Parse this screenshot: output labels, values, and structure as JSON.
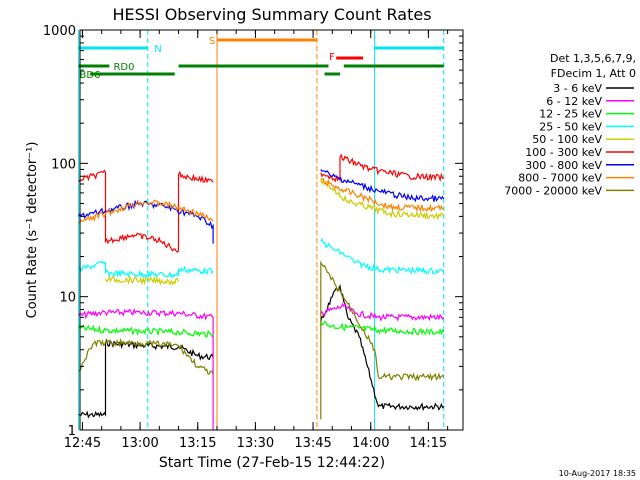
{
  "chart_data": {
    "type": "line",
    "title": "HESSI Observing Summary Count Rates",
    "xlabel": "Start Time (27-Feb-15 12:44:22)",
    "ylabel": "Count Rate (s⁻¹ detector⁻¹)",
    "yscale": "log",
    "ylim": [
      1,
      1000
    ],
    "xlim": [
      "12:44:22",
      "14:24:00"
    ],
    "x_ticks": [
      "12:45",
      "13:00",
      "13:15",
      "13:30",
      "13:45",
      "14:00",
      "14:15"
    ],
    "y_ticks": [
      "1",
      "10",
      "100",
      "1000"
    ],
    "footer_timestamp": "10-Aug-2017 18:35",
    "legend_header": [
      "Det 1,3,5,6,7,9,",
      "FDecim 1, Att 0"
    ],
    "status_flags": [
      {
        "label": "N",
        "color": "#00e5ee",
        "segments": [
          [
            "12:44",
            "13:02"
          ],
          [
            "14:01",
            "14:19"
          ]
        ]
      },
      {
        "label": "S",
        "color": "#ff8000",
        "segments": [
          [
            "13:20",
            "13:46"
          ]
        ]
      },
      {
        "label": "F",
        "color": "#ff0000",
        "segments": [
          [
            "13:51",
            "13:58"
          ]
        ]
      },
      {
        "label": "RD0",
        "color": "#008000",
        "segments": [
          [
            "12:44",
            "12:52"
          ],
          [
            "13:10",
            "13:49"
          ],
          [
            "13:53",
            "14:19"
          ]
        ]
      },
      {
        "label": "BD6",
        "color": "#008000",
        "segments": [
          [
            "12:47",
            "13:09"
          ],
          [
            "13:48",
            "13:52"
          ]
        ]
      }
    ],
    "series": [
      {
        "name": "3 - 6 keV",
        "color": "#000000",
        "segments": [
          [
            [
              "12:44",
              1.3
            ],
            [
              "12:51",
              1.3
            ],
            [
              "12:51",
              4.5
            ],
            [
              "13:00",
              4.3
            ],
            [
              "13:10",
              4.2
            ],
            [
              "13:15",
              3.6
            ],
            [
              "13:19",
              3.5
            ]
          ],
          [
            [
              "13:47",
              6.5
            ],
            [
              "13:50",
              10
            ],
            [
              "13:52",
              12
            ],
            [
              "13:54",
              7
            ],
            [
              "13:57",
              5
            ],
            [
              "14:02",
              1.5
            ],
            [
              "14:19",
              1.5
            ]
          ]
        ]
      },
      {
        "name": "6 - 12 keV",
        "color": "#ff00ff",
        "segments": [
          [
            [
              "12:44",
              7.2
            ],
            [
              "12:50",
              7.6
            ],
            [
              "13:00",
              7.6
            ],
            [
              "13:10",
              7.5
            ],
            [
              "13:19",
              7.0
            ],
            [
              "13:19",
              1.0
            ]
          ],
          [
            [
              "13:47",
              7.5
            ],
            [
              "13:53",
              8.5
            ],
            [
              "13:56",
              7.5
            ],
            [
              "14:02",
              7.0
            ],
            [
              "14:19",
              7.0
            ]
          ]
        ]
      },
      {
        "name": "12 - 25 keV",
        "color": "#00ff00",
        "segments": [
          [
            [
              "12:44",
              5.8
            ],
            [
              "12:51",
              5.6
            ],
            [
              "13:00",
              5.5
            ],
            [
              "13:10",
              5.4
            ],
            [
              "13:19",
              5.2
            ]
          ],
          [
            [
              "13:47",
              6.5
            ],
            [
              "13:50",
              6.0
            ],
            [
              "13:57",
              5.8
            ],
            [
              "14:02",
              5.6
            ],
            [
              "14:19",
              5.4
            ]
          ]
        ]
      },
      {
        "name": "25 - 50 keV",
        "color": "#00ffff",
        "segments": [
          [
            [
              "12:44",
              16
            ],
            [
              "12:51",
              18
            ],
            [
              "12:51",
              15
            ],
            [
              "13:10",
              14.5
            ],
            [
              "13:10",
              16
            ],
            [
              "13:19",
              15.5
            ]
          ],
          [
            [
              "13:47",
              26
            ],
            [
              "13:50",
              23
            ],
            [
              "13:54",
              20
            ],
            [
              "13:56",
              18
            ],
            [
              "14:02",
              16
            ],
            [
              "14:19",
              15.5
            ]
          ]
        ]
      },
      {
        "name": "50 - 100 keV",
        "color": "#cccc00",
        "segments": [
          [
            [
              "12:51",
              13.5
            ],
            [
              "13:10",
              13.0
            ]
          ],
          [
            [
              "13:47",
              75
            ],
            [
              "13:50",
              65
            ],
            [
              "13:54",
              52
            ],
            [
              "14:05",
              42
            ],
            [
              "14:19",
              40
            ]
          ]
        ]
      },
      {
        "name": "100 - 300 keV",
        "color": "#ff0000",
        "segments": [
          [
            [
              "12:44",
              75
            ],
            [
              "12:51",
              85
            ],
            [
              "12:51",
              26
            ],
            [
              "12:58",
              29
            ],
            [
              "13:04",
              27
            ],
            [
              "13:10",
              22
            ],
            [
              "13:10",
              82
            ],
            [
              "13:19",
              72
            ]
          ],
          [
            [
              "13:47",
              85
            ],
            [
              "13:52",
              75
            ],
            [
              "13:52",
              112
            ],
            [
              "14:00",
              90
            ],
            [
              "14:10",
              80
            ],
            [
              "14:19",
              78
            ]
          ]
        ]
      },
      {
        "name": "300 - 800 keV",
        "color": "#0000ff",
        "segments": [
          [
            [
              "12:44",
              40
            ],
            [
              "12:51",
              44
            ],
            [
              "13:00",
              50
            ],
            [
              "13:06",
              48
            ],
            [
              "13:15",
              40
            ],
            [
              "13:19",
              34
            ],
            [
              "13:19",
              25
            ]
          ],
          [
            [
              "13:47",
              90
            ],
            [
              "13:50",
              80
            ],
            [
              "13:55",
              72
            ],
            [
              "14:02",
              62
            ],
            [
              "14:10",
              55
            ],
            [
              "14:19",
              54
            ]
          ]
        ]
      },
      {
        "name": "800 - 7000 keV",
        "color": "#ff8000",
        "segments": [
          [
            [
              "12:44",
              36
            ],
            [
              "12:51",
              42
            ],
            [
              "13:00",
              51
            ],
            [
              "13:06",
              50
            ],
            [
              "13:15",
              42
            ],
            [
              "13:19",
              37
            ]
          ],
          [
            [
              "13:47",
              75
            ],
            [
              "13:50",
              68
            ],
            [
              "13:55",
              60
            ],
            [
              "14:05",
              47
            ],
            [
              "14:19",
              46
            ]
          ]
        ]
      },
      {
        "name": "7000 - 20000 keV",
        "color": "#808000",
        "segments": [
          [
            [
              "12:44",
              2.8
            ],
            [
              "12:48",
              4.5
            ],
            [
              "13:00",
              4.5
            ],
            [
              "13:10",
              4.3
            ],
            [
              "13:15",
              3.0
            ],
            [
              "13:19",
              2.6
            ]
          ],
          [
            [
              "13:47",
              1.2
            ],
            [
              "13:47",
              18
            ],
            [
              "13:51",
              12
            ],
            [
              "13:55",
              8
            ],
            [
              "14:01",
              4.0
            ],
            [
              "14:02",
              2.5
            ],
            [
              "14:19",
              2.5
            ]
          ]
        ]
      }
    ],
    "vertical_markers": [
      {
        "time": "12:44",
        "color": "#00e5ee",
        "style": "solid"
      },
      {
        "time": "13:02",
        "color": "#00e5ee",
        "style": "dashed"
      },
      {
        "time": "13:20",
        "color": "#ff8000",
        "style": "solid"
      },
      {
        "time": "13:46",
        "color": "#ff8000",
        "style": "dashed"
      },
      {
        "time": "14:01",
        "color": "#00e5ee",
        "style": "solid"
      },
      {
        "time": "14:19",
        "color": "#00e5ee",
        "style": "dashed"
      }
    ]
  }
}
